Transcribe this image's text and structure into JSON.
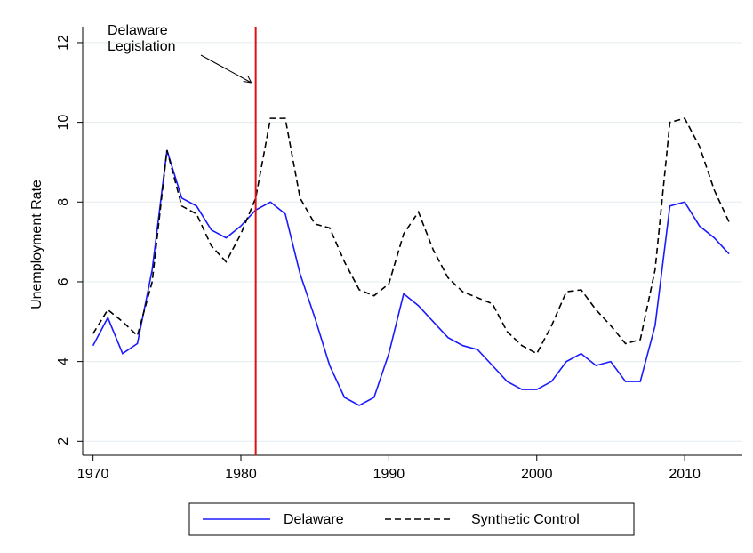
{
  "chart_data": {
    "type": "line",
    "y_label": "Unemployment Rate",
    "x": [
      1970,
      1971,
      1972,
      1973,
      1974,
      1975,
      1976,
      1977,
      1978,
      1979,
      1980,
      1981,
      1982,
      1983,
      1984,
      1985,
      1986,
      1987,
      1988,
      1989,
      1990,
      1991,
      1992,
      1993,
      1994,
      1995,
      1996,
      1997,
      1998,
      1999,
      2000,
      2001,
      2002,
      2003,
      2004,
      2005,
      2006,
      2007,
      2008,
      2009,
      2010,
      2011,
      2012,
      2013
    ],
    "series": [
      {
        "name": "Delaware",
        "color": "#1a1aff",
        "dash": false,
        "values": [
          4.4,
          5.1,
          4.2,
          4.45,
          6.3,
          9.3,
          8.1,
          7.9,
          7.3,
          7.1,
          7.4,
          7.8,
          8.0,
          7.7,
          6.2,
          5.1,
          3.9,
          3.1,
          2.9,
          3.1,
          4.2,
          5.7,
          5.4,
          5.0,
          4.6,
          4.4,
          4.3,
          3.9,
          3.5,
          3.3,
          3.3,
          3.5,
          4.0,
          4.2,
          3.9,
          4.0,
          3.5,
          3.5,
          4.9,
          7.9,
          8.0,
          7.4,
          7.1,
          6.7
        ]
      },
      {
        "name": "Synthetic Control",
        "color": "#000000",
        "dash": true,
        "values": [
          4.7,
          5.3,
          5.0,
          4.65,
          6.0,
          9.3,
          7.9,
          7.7,
          6.9,
          6.5,
          7.2,
          8.1,
          10.1,
          10.1,
          8.1,
          7.45,
          7.35,
          6.5,
          5.8,
          5.65,
          5.95,
          7.2,
          7.75,
          6.8,
          6.1,
          5.75,
          5.6,
          5.45,
          4.75,
          4.4,
          4.2,
          4.9,
          5.75,
          5.8,
          5.3,
          4.9,
          4.45,
          4.55,
          6.3,
          10.0,
          10.1,
          9.4,
          8.3,
          7.5
        ]
      }
    ],
    "vline": {
      "x": 1981,
      "color": "#e01010"
    },
    "annotation": [
      "Delaware",
      "Legislation"
    ],
    "xlim": [
      1969.3,
      2013.9
    ],
    "ylim": [
      1.65,
      12.4
    ],
    "xticks": [
      1970,
      1980,
      1990,
      2000,
      2010
    ],
    "yticks": [
      2,
      4,
      6,
      8,
      10,
      12
    ],
    "grid": true,
    "legend": "bottom"
  }
}
